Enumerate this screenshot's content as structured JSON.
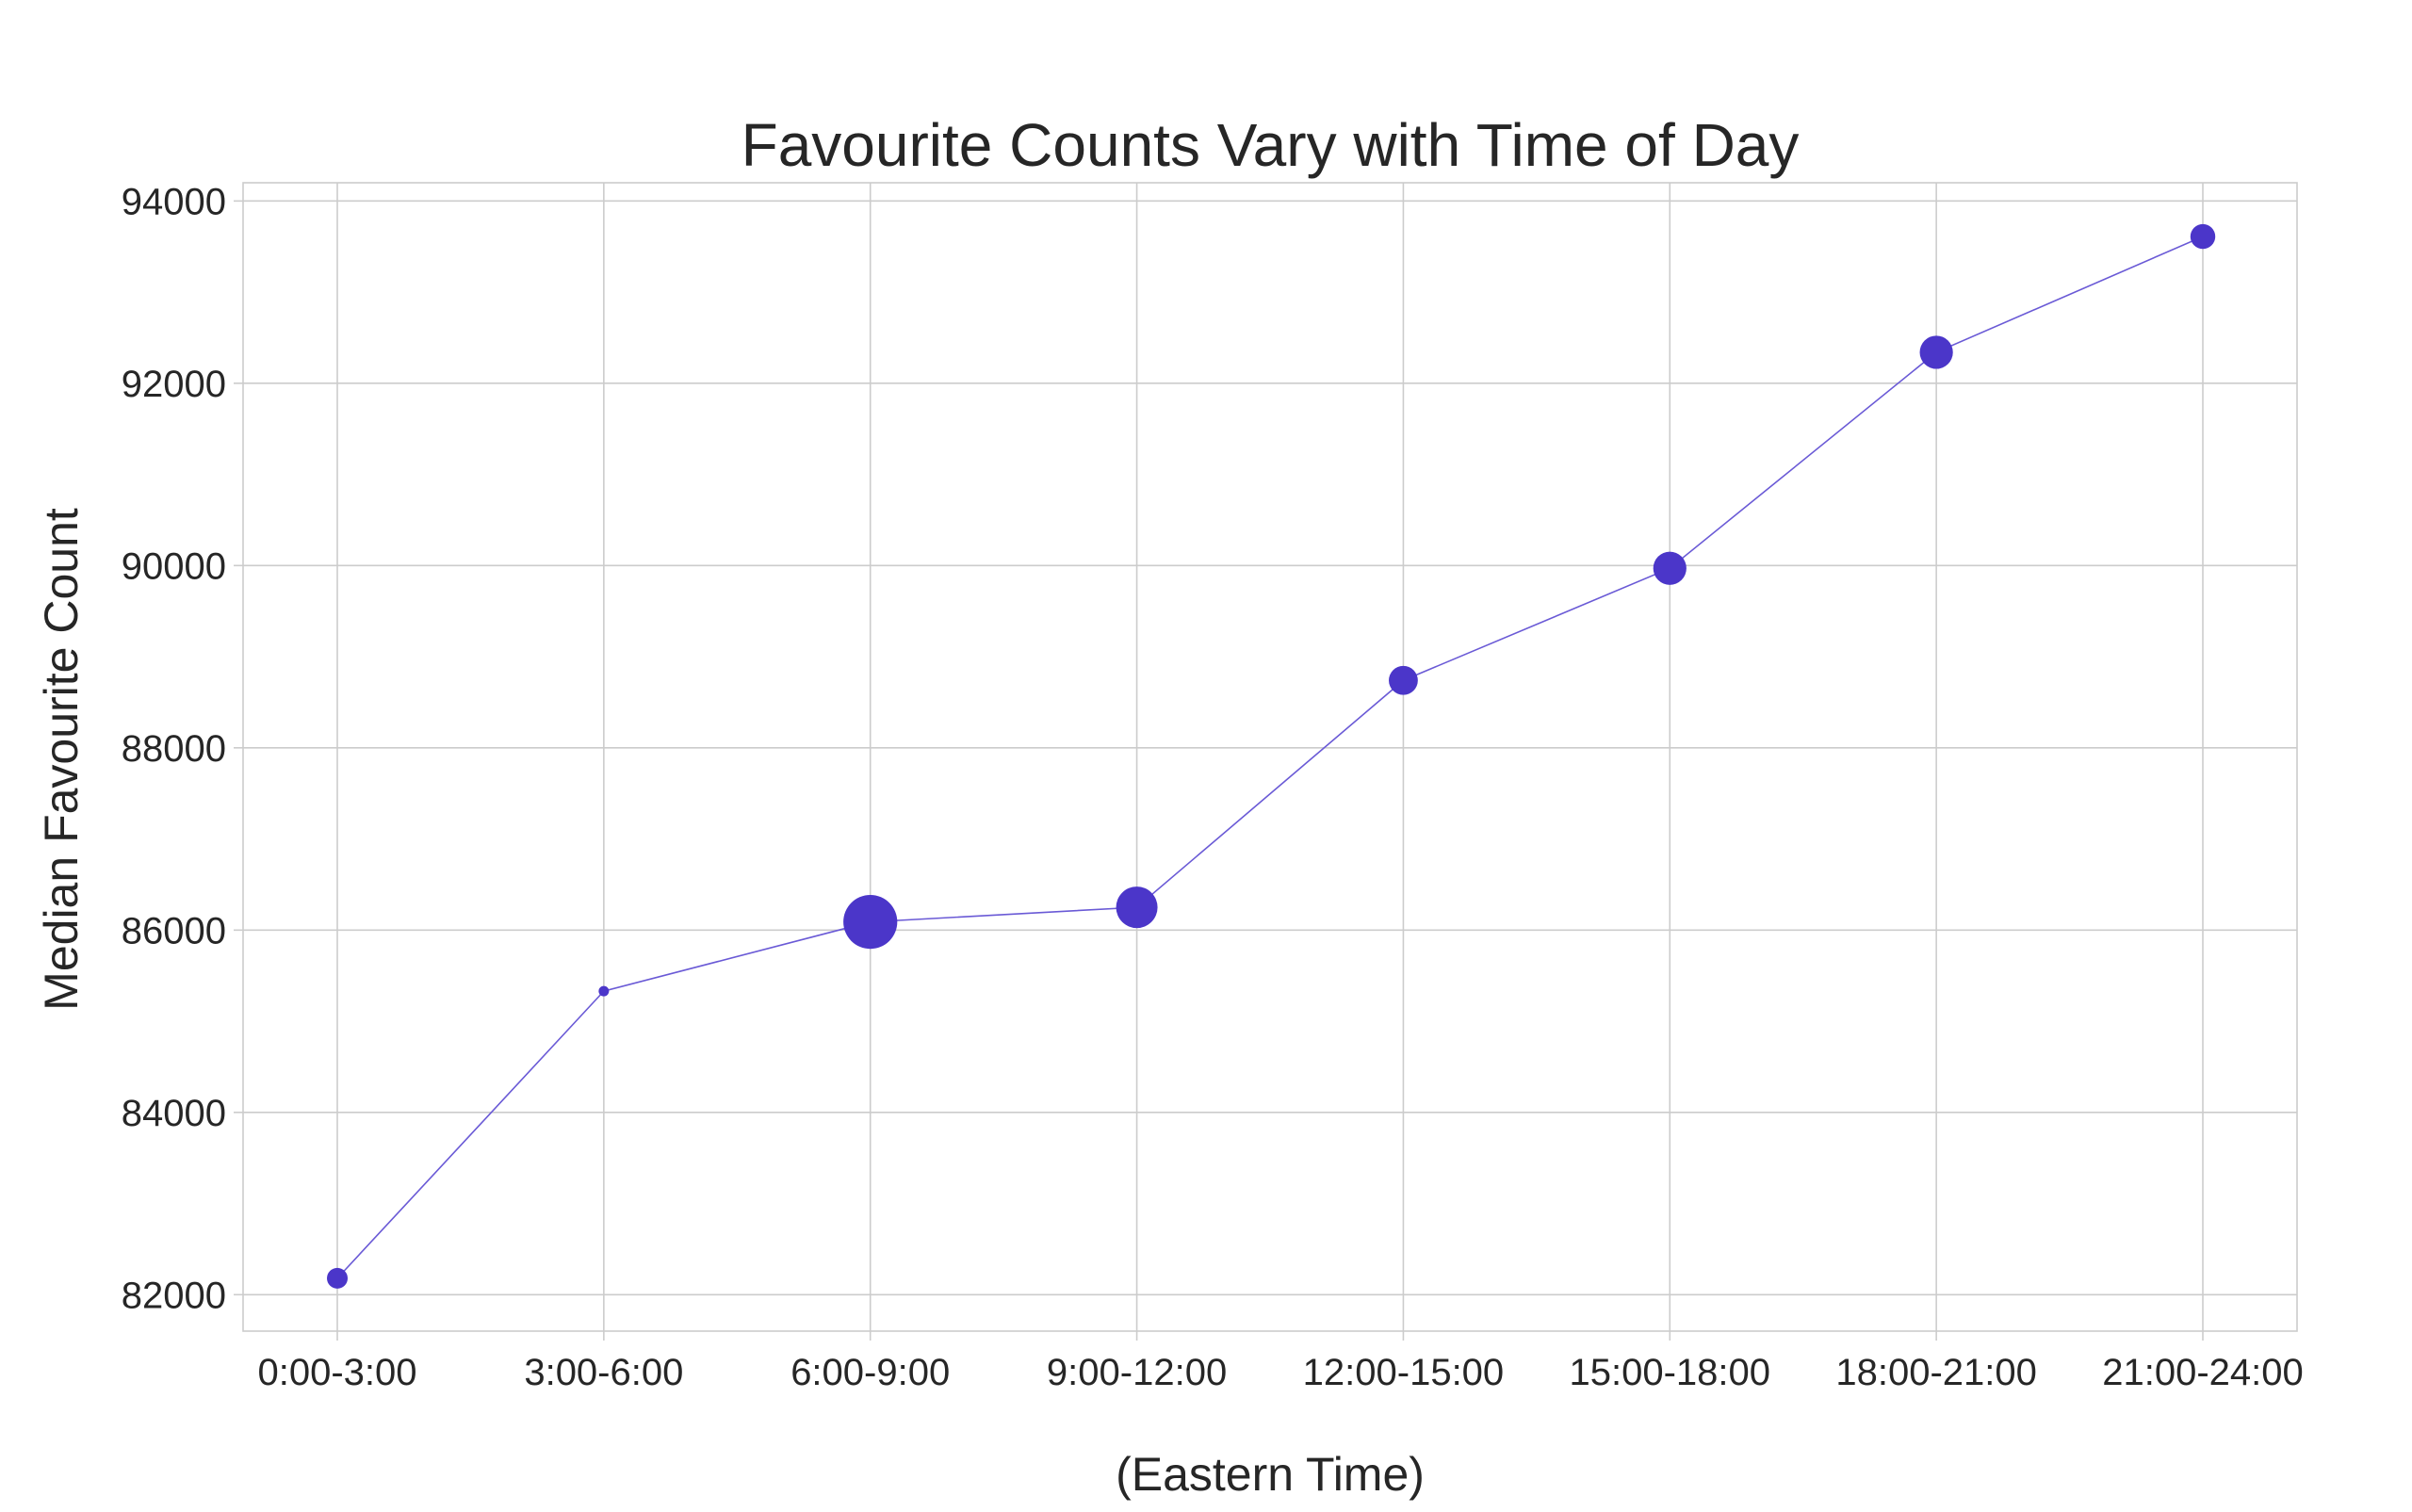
{
  "chart_data": {
    "type": "scatter",
    "title": "Favourite Counts Vary with Time of Day",
    "xlabel": "(Eastern Time)",
    "ylabel": "Median Favourite Count",
    "categories": [
      "0:00-3:00",
      "3:00-6:00",
      "6:00-9:00",
      "9:00-12:00",
      "12:00-15:00",
      "15:00-18:00",
      "18:00-21:00",
      "21:00-24:00"
    ],
    "series": [
      {
        "values": [
          82180,
          85330,
          86090,
          86250,
          88740,
          89970,
          92340,
          93610
        ],
        "marker_size": [
          1.0,
          0.5,
          2.6,
          2.0,
          1.4,
          1.6,
          1.6,
          1.2
        ]
      }
    ],
    "yticks": [
      82000,
      84000,
      86000,
      88000,
      90000,
      92000,
      94000
    ],
    "ylim": [
      81600,
      94200
    ],
    "grid": true,
    "line_connects_points": true,
    "colors": {
      "marker": "#4b36c9",
      "line": "#6a5ad6",
      "grid": "#cccccc",
      "text": "#262626"
    }
  }
}
